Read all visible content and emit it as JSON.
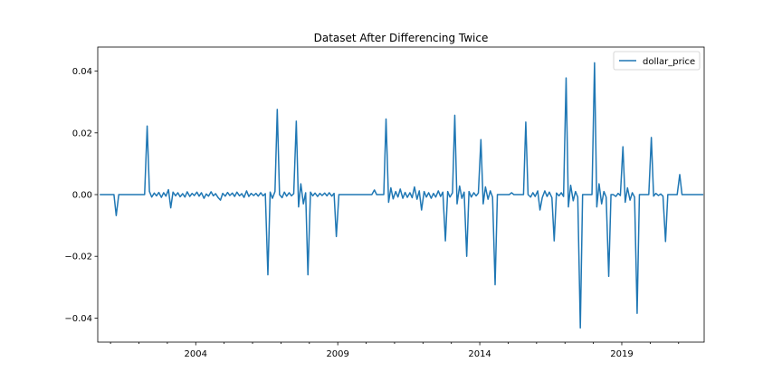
{
  "chart_data": {
    "type": "line",
    "title": "Dataset After Differencing Twice",
    "xlabel": "",
    "ylabel": "",
    "xlim": [
      2000.55,
      2021.9
    ],
    "ylim": [
      -0.0478,
      0.0478
    ],
    "x_ticks": [
      2004,
      2009,
      2014,
      2019
    ],
    "x_tick_labels": [
      "2004",
      "2009",
      "2014",
      "2019"
    ],
    "y_ticks": [
      -0.04,
      -0.02,
      0.0,
      0.02,
      0.04
    ],
    "y_tick_labels": [
      "−0.04",
      "−0.02",
      "0.00",
      "0.02",
      "0.04"
    ],
    "grid": false,
    "legend": {
      "position": "top-right",
      "entries": [
        "dollar_price"
      ]
    },
    "colors": {
      "line": "#1f77b4"
    },
    "series": [
      {
        "name": "dollar_price",
        "points": [
          [
            2000.62,
            0.0
          ],
          [
            2000.7,
            0.0
          ],
          [
            2000.79,
            0.0
          ],
          [
            2000.87,
            0.0
          ],
          [
            2000.95,
            0.0
          ],
          [
            2001.04,
            0.0
          ],
          [
            2001.12,
            0.0
          ],
          [
            2001.2,
            -0.0068
          ],
          [
            2001.29,
            0.0
          ],
          [
            2001.37,
            0.0
          ],
          [
            2001.45,
            0.0
          ],
          [
            2001.54,
            0.0
          ],
          [
            2001.62,
            0.0
          ],
          [
            2001.7,
            0.0
          ],
          [
            2001.79,
            0.0
          ],
          [
            2001.87,
            0.0
          ],
          [
            2001.95,
            0.0
          ],
          [
            2002.04,
            0.0
          ],
          [
            2002.12,
            0.0
          ],
          [
            2002.2,
            0.0
          ],
          [
            2002.29,
            0.0222
          ],
          [
            2002.37,
            0.001
          ],
          [
            2002.45,
            -0.0008
          ],
          [
            2002.54,
            0.0005
          ],
          [
            2002.62,
            -0.0004
          ],
          [
            2002.7,
            0.0007
          ],
          [
            2002.79,
            -0.0009
          ],
          [
            2002.87,
            0.0006
          ],
          [
            2002.95,
            -0.0005
          ],
          [
            2003.04,
            0.0016
          ],
          [
            2003.12,
            -0.0043
          ],
          [
            2003.2,
            0.0008
          ],
          [
            2003.29,
            -0.0004
          ],
          [
            2003.37,
            0.0006
          ],
          [
            2003.45,
            -0.0007
          ],
          [
            2003.54,
            0.0003
          ],
          [
            2003.62,
            -0.0008
          ],
          [
            2003.7,
            0.0009
          ],
          [
            2003.79,
            -0.0006
          ],
          [
            2003.87,
            0.0004
          ],
          [
            2003.95,
            -0.0003
          ],
          [
            2004.04,
            0.0008
          ],
          [
            2004.12,
            -0.0005
          ],
          [
            2004.2,
            0.0006
          ],
          [
            2004.29,
            -0.0012
          ],
          [
            2004.37,
            0.0002
          ],
          [
            2004.45,
            -0.0005
          ],
          [
            2004.54,
            0.0009
          ],
          [
            2004.62,
            -0.0004
          ],
          [
            2004.7,
            0.0003
          ],
          [
            2004.79,
            -0.001
          ],
          [
            2004.87,
            -0.0018
          ],
          [
            2004.95,
            0.0004
          ],
          [
            2005.04,
            -0.0005
          ],
          [
            2005.12,
            0.0007
          ],
          [
            2005.2,
            -0.0003
          ],
          [
            2005.29,
            0.0005
          ],
          [
            2005.37,
            -0.0006
          ],
          [
            2005.45,
            0.0008
          ],
          [
            2005.54,
            -0.0004
          ],
          [
            2005.62,
            0.0003
          ],
          [
            2005.7,
            -0.0009
          ],
          [
            2005.79,
            0.0012
          ],
          [
            2005.87,
            -0.0006
          ],
          [
            2005.95,
            0.0004
          ],
          [
            2006.04,
            -0.0003
          ],
          [
            2006.12,
            0.0004
          ],
          [
            2006.2,
            -0.0005
          ],
          [
            2006.29,
            0.0006
          ],
          [
            2006.37,
            -0.0004
          ],
          [
            2006.45,
            0.0003
          ],
          [
            2006.54,
            -0.026
          ],
          [
            2006.62,
            0.0008
          ],
          [
            2006.7,
            -0.0012
          ],
          [
            2006.79,
            0.001
          ],
          [
            2006.87,
            0.0276
          ],
          [
            2006.95,
            0.0
          ],
          [
            2007.04,
            -0.001
          ],
          [
            2007.12,
            0.0008
          ],
          [
            2007.2,
            -0.0005
          ],
          [
            2007.29,
            0.0006
          ],
          [
            2007.37,
            -0.0004
          ],
          [
            2007.45,
            0.0003
          ],
          [
            2007.54,
            0.0238
          ],
          [
            2007.62,
            -0.004
          ],
          [
            2007.7,
            0.0035
          ],
          [
            2007.79,
            -0.003
          ],
          [
            2007.87,
            0.0006
          ],
          [
            2007.95,
            -0.026
          ],
          [
            2008.04,
            0.0008
          ],
          [
            2008.12,
            -0.0004
          ],
          [
            2008.2,
            0.0005
          ],
          [
            2008.29,
            -0.0006
          ],
          [
            2008.37,
            0.0004
          ],
          [
            2008.45,
            -0.0003
          ],
          [
            2008.54,
            0.0005
          ],
          [
            2008.62,
            -0.0004
          ],
          [
            2008.7,
            0.0006
          ],
          [
            2008.79,
            -0.0005
          ],
          [
            2008.87,
            0.0004
          ],
          [
            2008.95,
            -0.0136
          ],
          [
            2009.04,
            0.0
          ],
          [
            2009.12,
            0.0
          ],
          [
            2009.2,
            0.0
          ],
          [
            2009.29,
            0.0
          ],
          [
            2009.37,
            0.0
          ],
          [
            2009.45,
            0.0
          ],
          [
            2009.54,
            0.0
          ],
          [
            2009.62,
            0.0
          ],
          [
            2009.7,
            0.0
          ],
          [
            2009.79,
            0.0
          ],
          [
            2009.87,
            0.0
          ],
          [
            2009.95,
            0.0
          ],
          [
            2010.04,
            0.0
          ],
          [
            2010.12,
            0.0
          ],
          [
            2010.2,
            0.0
          ],
          [
            2010.29,
            0.0015
          ],
          [
            2010.37,
            0.0
          ],
          [
            2010.45,
            0.0
          ],
          [
            2010.54,
            0.0
          ],
          [
            2010.62,
            0.0
          ],
          [
            2010.7,
            0.0245
          ],
          [
            2010.79,
            -0.0025
          ],
          [
            2010.87,
            0.0022
          ],
          [
            2010.95,
            -0.0014
          ],
          [
            2011.04,
            0.001
          ],
          [
            2011.12,
            -0.0008
          ],
          [
            2011.2,
            0.0018
          ],
          [
            2011.29,
            -0.0012
          ],
          [
            2011.37,
            0.0007
          ],
          [
            2011.45,
            -0.0009
          ],
          [
            2011.54,
            0.0006
          ],
          [
            2011.62,
            -0.001
          ],
          [
            2011.7,
            0.0025
          ],
          [
            2011.79,
            -0.0015
          ],
          [
            2011.87,
            0.0012
          ],
          [
            2011.95,
            -0.005
          ],
          [
            2012.04,
            0.001
          ],
          [
            2012.12,
            -0.0008
          ],
          [
            2012.2,
            0.0006
          ],
          [
            2012.29,
            -0.0012
          ],
          [
            2012.37,
            0.0004
          ],
          [
            2012.45,
            -0.0008
          ],
          [
            2012.54,
            0.0012
          ],
          [
            2012.62,
            -0.0006
          ],
          [
            2012.7,
            0.0008
          ],
          [
            2012.79,
            -0.015
          ],
          [
            2012.87,
            0.001
          ],
          [
            2012.95,
            -0.0008
          ],
          [
            2013.04,
            0.0006
          ],
          [
            2013.12,
            0.0257
          ],
          [
            2013.2,
            -0.003
          ],
          [
            2013.29,
            0.0028
          ],
          [
            2013.37,
            -0.0012
          ],
          [
            2013.45,
            0.0008
          ],
          [
            2013.54,
            -0.02
          ],
          [
            2013.62,
            0.001
          ],
          [
            2013.7,
            -0.0008
          ],
          [
            2013.79,
            0.0006
          ],
          [
            2013.87,
            -0.0004
          ],
          [
            2013.95,
            0.0005
          ],
          [
            2014.04,
            0.0178
          ],
          [
            2014.12,
            -0.003
          ],
          [
            2014.2,
            0.0025
          ],
          [
            2014.29,
            -0.0015
          ],
          [
            2014.37,
            0.0012
          ],
          [
            2014.45,
            -0.0008
          ],
          [
            2014.54,
            -0.0292
          ],
          [
            2014.62,
            0.0
          ],
          [
            2014.7,
            0.0
          ],
          [
            2014.79,
            0.0
          ],
          [
            2014.87,
            0.0
          ],
          [
            2014.95,
            0.0
          ],
          [
            2015.04,
            0.0
          ],
          [
            2015.12,
            0.0006
          ],
          [
            2015.2,
            0.0
          ],
          [
            2015.29,
            0.0
          ],
          [
            2015.37,
            0.0
          ],
          [
            2015.45,
            0.0
          ],
          [
            2015.54,
            0.0
          ],
          [
            2015.62,
            0.0235
          ],
          [
            2015.7,
            0.0
          ],
          [
            2015.79,
            -0.0008
          ],
          [
            2015.87,
            0.0006
          ],
          [
            2015.95,
            -0.0006
          ],
          [
            2016.04,
            0.0012
          ],
          [
            2016.12,
            -0.005
          ],
          [
            2016.2,
            -0.001
          ],
          [
            2016.29,
            0.0012
          ],
          [
            2016.37,
            -0.0006
          ],
          [
            2016.45,
            0.0008
          ],
          [
            2016.54,
            -0.001
          ],
          [
            2016.62,
            -0.015
          ],
          [
            2016.7,
            0.0005
          ],
          [
            2016.79,
            -0.0004
          ],
          [
            2016.87,
            0.0006
          ],
          [
            2016.95,
            -0.0006
          ],
          [
            2017.04,
            0.0378
          ],
          [
            2017.12,
            -0.004
          ],
          [
            2017.2,
            0.003
          ],
          [
            2017.29,
            -0.002
          ],
          [
            2017.37,
            0.001
          ],
          [
            2017.45,
            -0.0008
          ],
          [
            2017.54,
            -0.0432
          ],
          [
            2017.62,
            0.0
          ],
          [
            2017.7,
            0.0
          ],
          [
            2017.79,
            0.0
          ],
          [
            2017.87,
            0.0
          ],
          [
            2017.95,
            0.0
          ],
          [
            2018.04,
            0.0427
          ],
          [
            2018.12,
            -0.004
          ],
          [
            2018.2,
            0.0035
          ],
          [
            2018.29,
            -0.003
          ],
          [
            2018.37,
            0.001
          ],
          [
            2018.45,
            -0.0008
          ],
          [
            2018.54,
            -0.0265
          ],
          [
            2018.62,
            0.0
          ],
          [
            2018.7,
            0.0
          ],
          [
            2018.79,
            -0.0006
          ],
          [
            2018.87,
            0.0004
          ],
          [
            2018.95,
            -0.0003
          ],
          [
            2019.04,
            0.0155
          ],
          [
            2019.12,
            -0.0025
          ],
          [
            2019.2,
            0.0022
          ],
          [
            2019.29,
            -0.0018
          ],
          [
            2019.37,
            0.0006
          ],
          [
            2019.45,
            -0.0008
          ],
          [
            2019.54,
            -0.0385
          ],
          [
            2019.62,
            0.0
          ],
          [
            2019.7,
            0.0
          ],
          [
            2019.79,
            0.0
          ],
          [
            2019.87,
            0.0
          ],
          [
            2019.95,
            0.0
          ],
          [
            2020.04,
            0.0185
          ],
          [
            2020.12,
            -0.0005
          ],
          [
            2020.2,
            0.0004
          ],
          [
            2020.29,
            -0.0003
          ],
          [
            2020.37,
            0.0002
          ],
          [
            2020.45,
            -0.0005
          ],
          [
            2020.54,
            -0.0152
          ],
          [
            2020.62,
            0.0
          ],
          [
            2020.7,
            0.0
          ],
          [
            2020.79,
            0.0
          ],
          [
            2020.87,
            0.0
          ],
          [
            2020.95,
            0.0
          ],
          [
            2021.04,
            0.0065
          ],
          [
            2021.12,
            0.0
          ],
          [
            2021.2,
            0.0
          ],
          [
            2021.29,
            0.0
          ],
          [
            2021.37,
            0.0
          ],
          [
            2021.45,
            0.0
          ],
          [
            2021.54,
            0.0
          ],
          [
            2021.62,
            0.0
          ],
          [
            2021.7,
            0.0
          ],
          [
            2021.79,
            0.0
          ],
          [
            2021.87,
            0.0
          ]
        ]
      }
    ]
  }
}
